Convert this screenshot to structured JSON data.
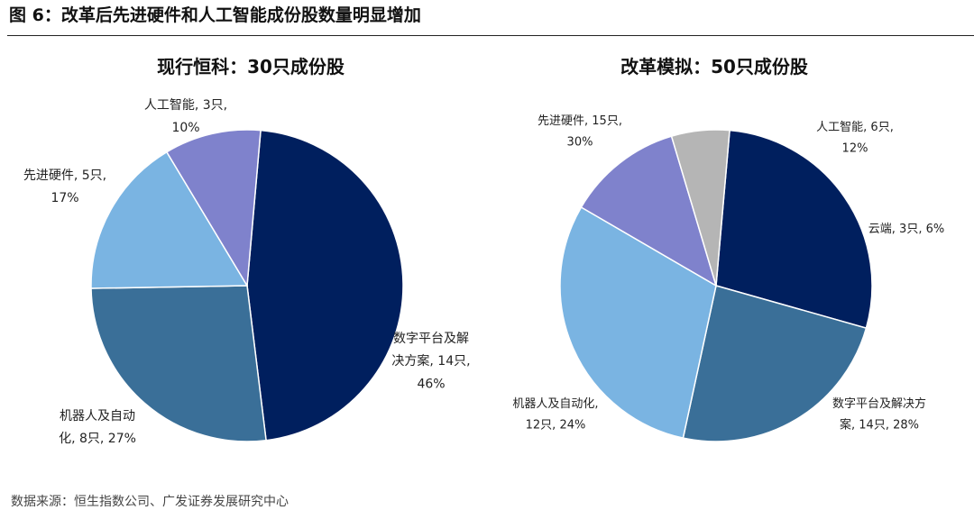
{
  "figure_title": "图 6：改革后先进硬件和人工智能成份股数量明显增加",
  "source": "数据来源：恒生指数公司、广发证券发展研究中心",
  "chart_data": [
    {
      "type": "pie",
      "title": "现行恒科：30只成份股",
      "slices": [
        {
          "label_lines": [
            "数字平台及解",
            "决方案, 14只,",
            "46%"
          ],
          "value": 14,
          "percent": 46,
          "color": "#001f5e"
        },
        {
          "label_lines": [
            "机器人及自动",
            "化, 8只, 27%"
          ],
          "value": 8,
          "percent": 27,
          "color": "#3a6f98"
        },
        {
          "label_lines": [
            "先进硬件, 5只,",
            "17%"
          ],
          "value": 5,
          "percent": 17,
          "color": "#7ab4e2"
        },
        {
          "label_lines": [
            "人工智能, 3只,",
            "10%"
          ],
          "value": 3,
          "percent": 10,
          "color": "#7f82cc"
        }
      ]
    },
    {
      "type": "pie",
      "title": "改革模拟：50只成份股",
      "slices": [
        {
          "label_lines": [
            "数字平台及解决方",
            "案, 14只, 28%"
          ],
          "value": 14,
          "percent": 28,
          "color": "#001f5e"
        },
        {
          "label_lines": [
            "机器人及自动化,",
            "12只, 24%"
          ],
          "value": 12,
          "percent": 24,
          "color": "#3a6f98"
        },
        {
          "label_lines": [
            "先进硬件, 15只,",
            "30%"
          ],
          "value": 15,
          "percent": 30,
          "color": "#7ab4e2"
        },
        {
          "label_lines": [
            "人工智能, 6只,",
            "12%"
          ],
          "value": 6,
          "percent": 12,
          "color": "#7f82cc"
        },
        {
          "label_lines": [
            "云端, 3只, 6%"
          ],
          "value": 3,
          "percent": 6,
          "color": "#b5b5b5"
        }
      ]
    }
  ]
}
